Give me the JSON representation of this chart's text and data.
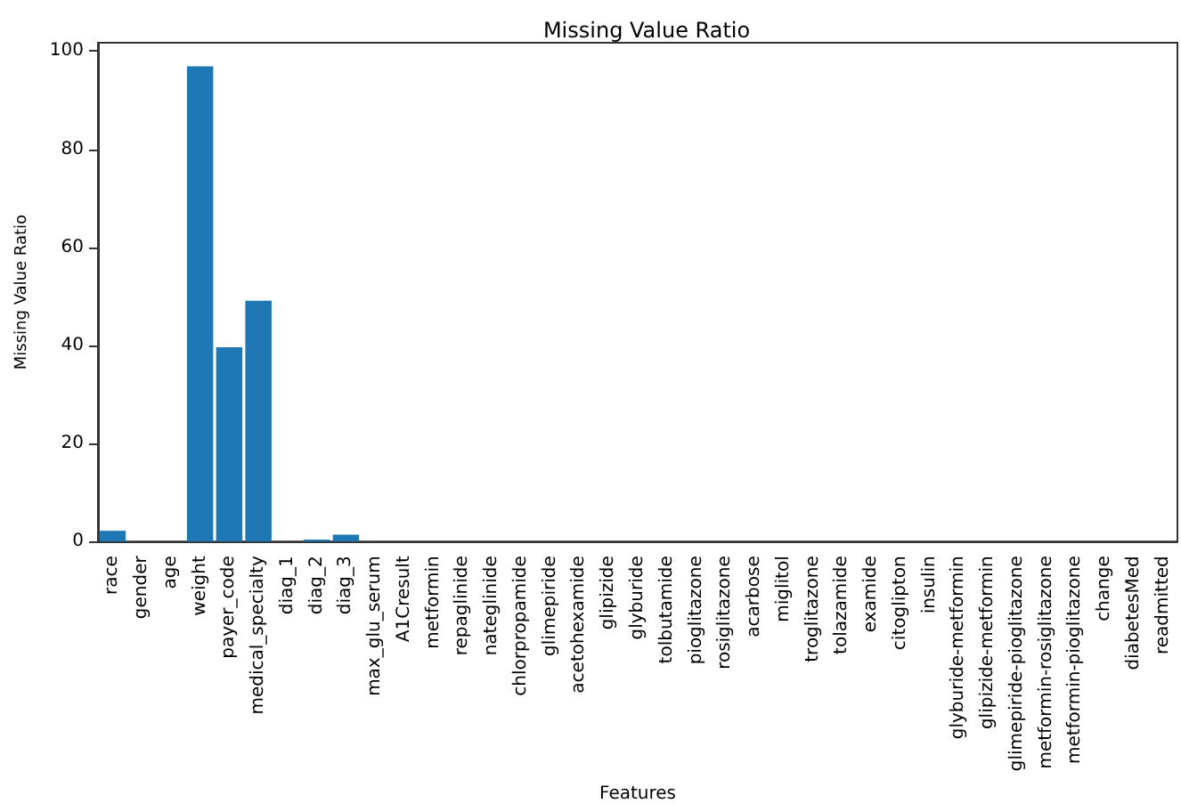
{
  "chart_data": {
    "type": "bar",
    "title": "Missing Value Ratio",
    "xlabel": "Features",
    "ylabel": "Missing Value Ratio",
    "categories": [
      "race",
      "gender",
      "age",
      "weight",
      "payer_code",
      "medical_specialty",
      "diag_1",
      "diag_2",
      "diag_3",
      "max_glu_serum",
      "A1Cresult",
      "metformin",
      "repaglinide",
      "nateglinide",
      "chlorpropamide",
      "glimepiride",
      "acetohexamide",
      "glipizide",
      "glyburide",
      "tolbutamide",
      "pioglitazone",
      "rosiglitazone",
      "acarbose",
      "miglitol",
      "troglitazone",
      "tolazamide",
      "examide",
      "citoglipton",
      "insulin",
      "glyburide-metformin",
      "glipizide-metformin",
      "glimepiride-pioglitazone",
      "metformin-rosiglitazone",
      "metformin-pioglitazone",
      "change",
      "diabetesMed",
      "readmitted"
    ],
    "values": [
      2.2,
      0,
      0,
      96.9,
      39.6,
      49.1,
      0,
      0.4,
      1.4,
      0,
      0,
      0,
      0,
      0,
      0,
      0,
      0,
      0,
      0,
      0,
      0,
      0,
      0,
      0,
      0,
      0,
      0,
      0,
      0,
      0,
      0,
      0,
      0,
      0,
      0,
      0,
      0
    ],
    "color": "#1f77b4",
    "ylim": [
      0,
      101.7
    ],
    "yticks": [
      0,
      20,
      40,
      60,
      80,
      100
    ],
    "grid": false
  }
}
